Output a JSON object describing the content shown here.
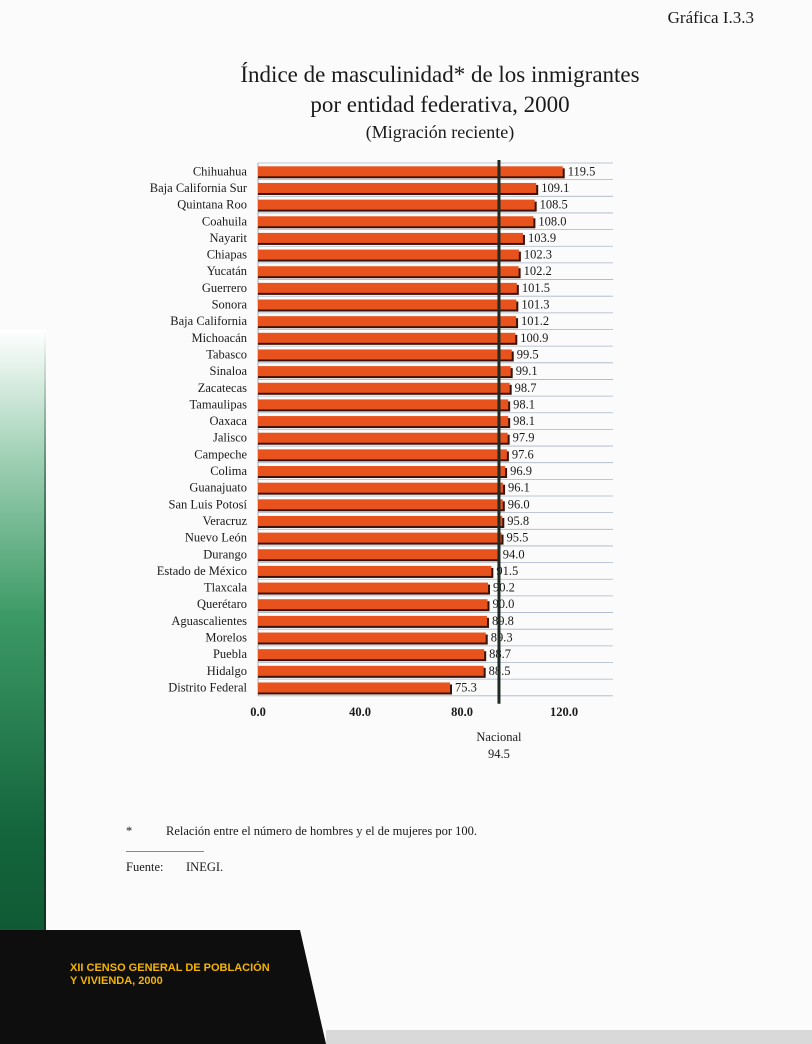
{
  "header": {
    "chart_label": "Gráfica I.3.3"
  },
  "chart_data": {
    "type": "bar",
    "orientation": "horizontal",
    "title": "Índice de masculinidad* de los inmigrantes por entidad federativa, 2000",
    "title_lines": [
      "Índice de masculinidad* de los inmigrantes",
      "por entidad federativa, 2000"
    ],
    "subtitle": "(Migración reciente)",
    "categories": [
      "Chihuahua",
      "Baja California Sur",
      "Quintana Roo",
      "Coahuila",
      "Nayarit",
      "Chiapas",
      "Yucatán",
      "Guerrero",
      "Sonora",
      "Baja California",
      "Michoacán",
      "Tabasco",
      "Sinaloa",
      "Zacatecas",
      "Tamaulipas",
      "Oaxaca",
      "Jalisco",
      "Campeche",
      "Colima",
      "Guanajuato",
      "San Luis Potosí",
      "Veracruz",
      "Nuevo León",
      "Durango",
      "Estado de México",
      "Tlaxcala",
      "Querétaro",
      "Aguascalientes",
      "Morelos",
      "Puebla",
      "Hidalgo",
      "Distrito Federal"
    ],
    "values": [
      119.5,
      109.1,
      108.5,
      108.0,
      103.9,
      102.3,
      102.2,
      101.5,
      101.3,
      101.2,
      100.9,
      99.5,
      99.1,
      98.7,
      98.1,
      98.1,
      97.9,
      97.6,
      96.9,
      96.1,
      96.0,
      95.8,
      95.5,
      94.0,
      91.5,
      90.2,
      90.0,
      89.8,
      89.3,
      88.7,
      88.5,
      75.3
    ],
    "value_labels": [
      "119.5",
      "109.1",
      "108.5",
      "108.0",
      "103.9",
      "102.3",
      "102.2",
      "101.5",
      "101.3",
      "101.2",
      "100.9",
      "99.5",
      "99.1",
      "98.7",
      "98.1",
      "98.1",
      "97.9",
      "97.6",
      "96.9",
      "96.1",
      "96.0",
      "95.8",
      "95.5",
      "94.0",
      "91.5",
      "90.2",
      "90.0",
      "89.8",
      "89.3",
      "88.7",
      "88.5",
      "75.3"
    ],
    "x_ticks": [
      "0.0",
      "40.0",
      "80.0",
      "120.0"
    ],
    "xlim": [
      0,
      140
    ],
    "reference_line": {
      "label": "Nacional",
      "value": 94.5,
      "value_label": "94.5"
    },
    "bar_color": "#e8521c",
    "bar_shadow_color": "#3a1208",
    "grid": true
  },
  "notes": {
    "asterisk": "*",
    "text": "Relación entre el número de hombres y el de mujeres por 100."
  },
  "source": {
    "label": "Fuente:",
    "value": "INEGI."
  },
  "footer": {
    "line1": "XII CENSO GENERAL DE POBLACIÓN",
    "line2": "Y VIVIENDA, 2000"
  }
}
